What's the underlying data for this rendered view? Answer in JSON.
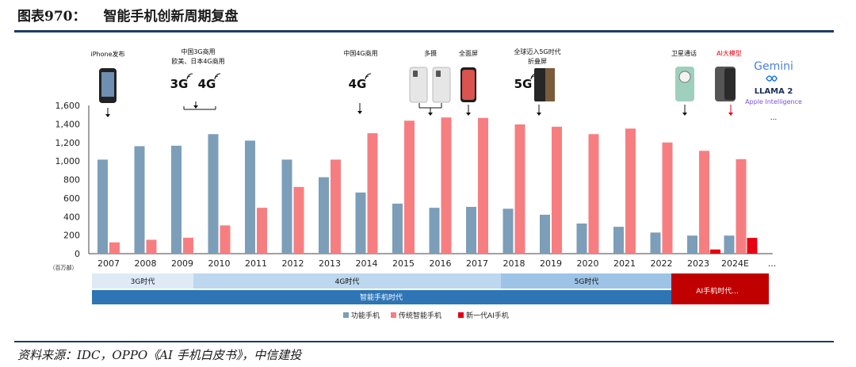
{
  "header": {
    "fig_no": "图表970：",
    "title": "智能手机创新周期复盘"
  },
  "source": "资料来源：IDC，OPPO《AI 手机白皮书》，中信建投",
  "colors": {
    "smart": "#7c9eb8",
    "traditional": "#f77e80",
    "ai": "#e60012",
    "rule": "#1f3a66"
  },
  "chart_data": {
    "type": "bar",
    "categories": [
      "2007",
      "2008",
      "2009",
      "2010",
      "2011",
      "2012",
      "2013",
      "2014",
      "2015",
      "2016",
      "2017",
      "2018",
      "2019",
      "2020",
      "2021",
      "2022",
      "2023",
      "2024E",
      "..."
    ],
    "series": [
      {
        "name": "功能手机",
        "values": [
          1015,
          1160,
          1165,
          1290,
          1220,
          1015,
          825,
          660,
          540,
          495,
          505,
          485,
          420,
          325,
          290,
          228,
          195,
          195,
          null
        ]
      },
      {
        "name": "传统智能手机",
        "values": [
          122,
          150,
          172,
          305,
          495,
          720,
          1015,
          1300,
          1435,
          1470,
          1465,
          1395,
          1370,
          1290,
          1350,
          1200,
          1110,
          1020,
          null
        ]
      },
      {
        "name": "新一代AI手机",
        "values": [
          null,
          null,
          null,
          null,
          null,
          null,
          null,
          null,
          null,
          null,
          null,
          null,
          null,
          null,
          null,
          null,
          45,
          170,
          null
        ]
      }
    ],
    "ylim": [
      0,
      1600
    ],
    "yticks": [
      "0",
      "200",
      "400",
      "600",
      "800",
      "1,000",
      "1,200",
      "1,400",
      "1,600"
    ],
    "unit_label": "（百万部）",
    "legend_position": "bottom",
    "grid": false
  },
  "annotations": {
    "iphone": "iPhone发布",
    "china3g_l1": "中国3G商用",
    "china3g_l2": "欧美、日本4G商用",
    "china4g": "中国4G商用",
    "multi_cam": "多摄",
    "full_screen": "全面屏",
    "g5_l1": "全球迈入5G时代",
    "g5_l2": "折叠屏",
    "satellite": "卫星通话",
    "ai_model": "AI大模型",
    "lbl_3g": "3G",
    "lbl_4g_a": "4G",
    "lbl_4g_b": "4G",
    "lbl_5g": "5G"
  },
  "ai_models": [
    "Gemini",
    "LLAMA 2",
    "Apple Intelligence",
    "..."
  ],
  "eras": {
    "g3": "3G时代",
    "g4": "4G时代",
    "g5": "5G时代",
    "smart_era": "智能手机时代",
    "ai_era": "AI手机时代..."
  }
}
